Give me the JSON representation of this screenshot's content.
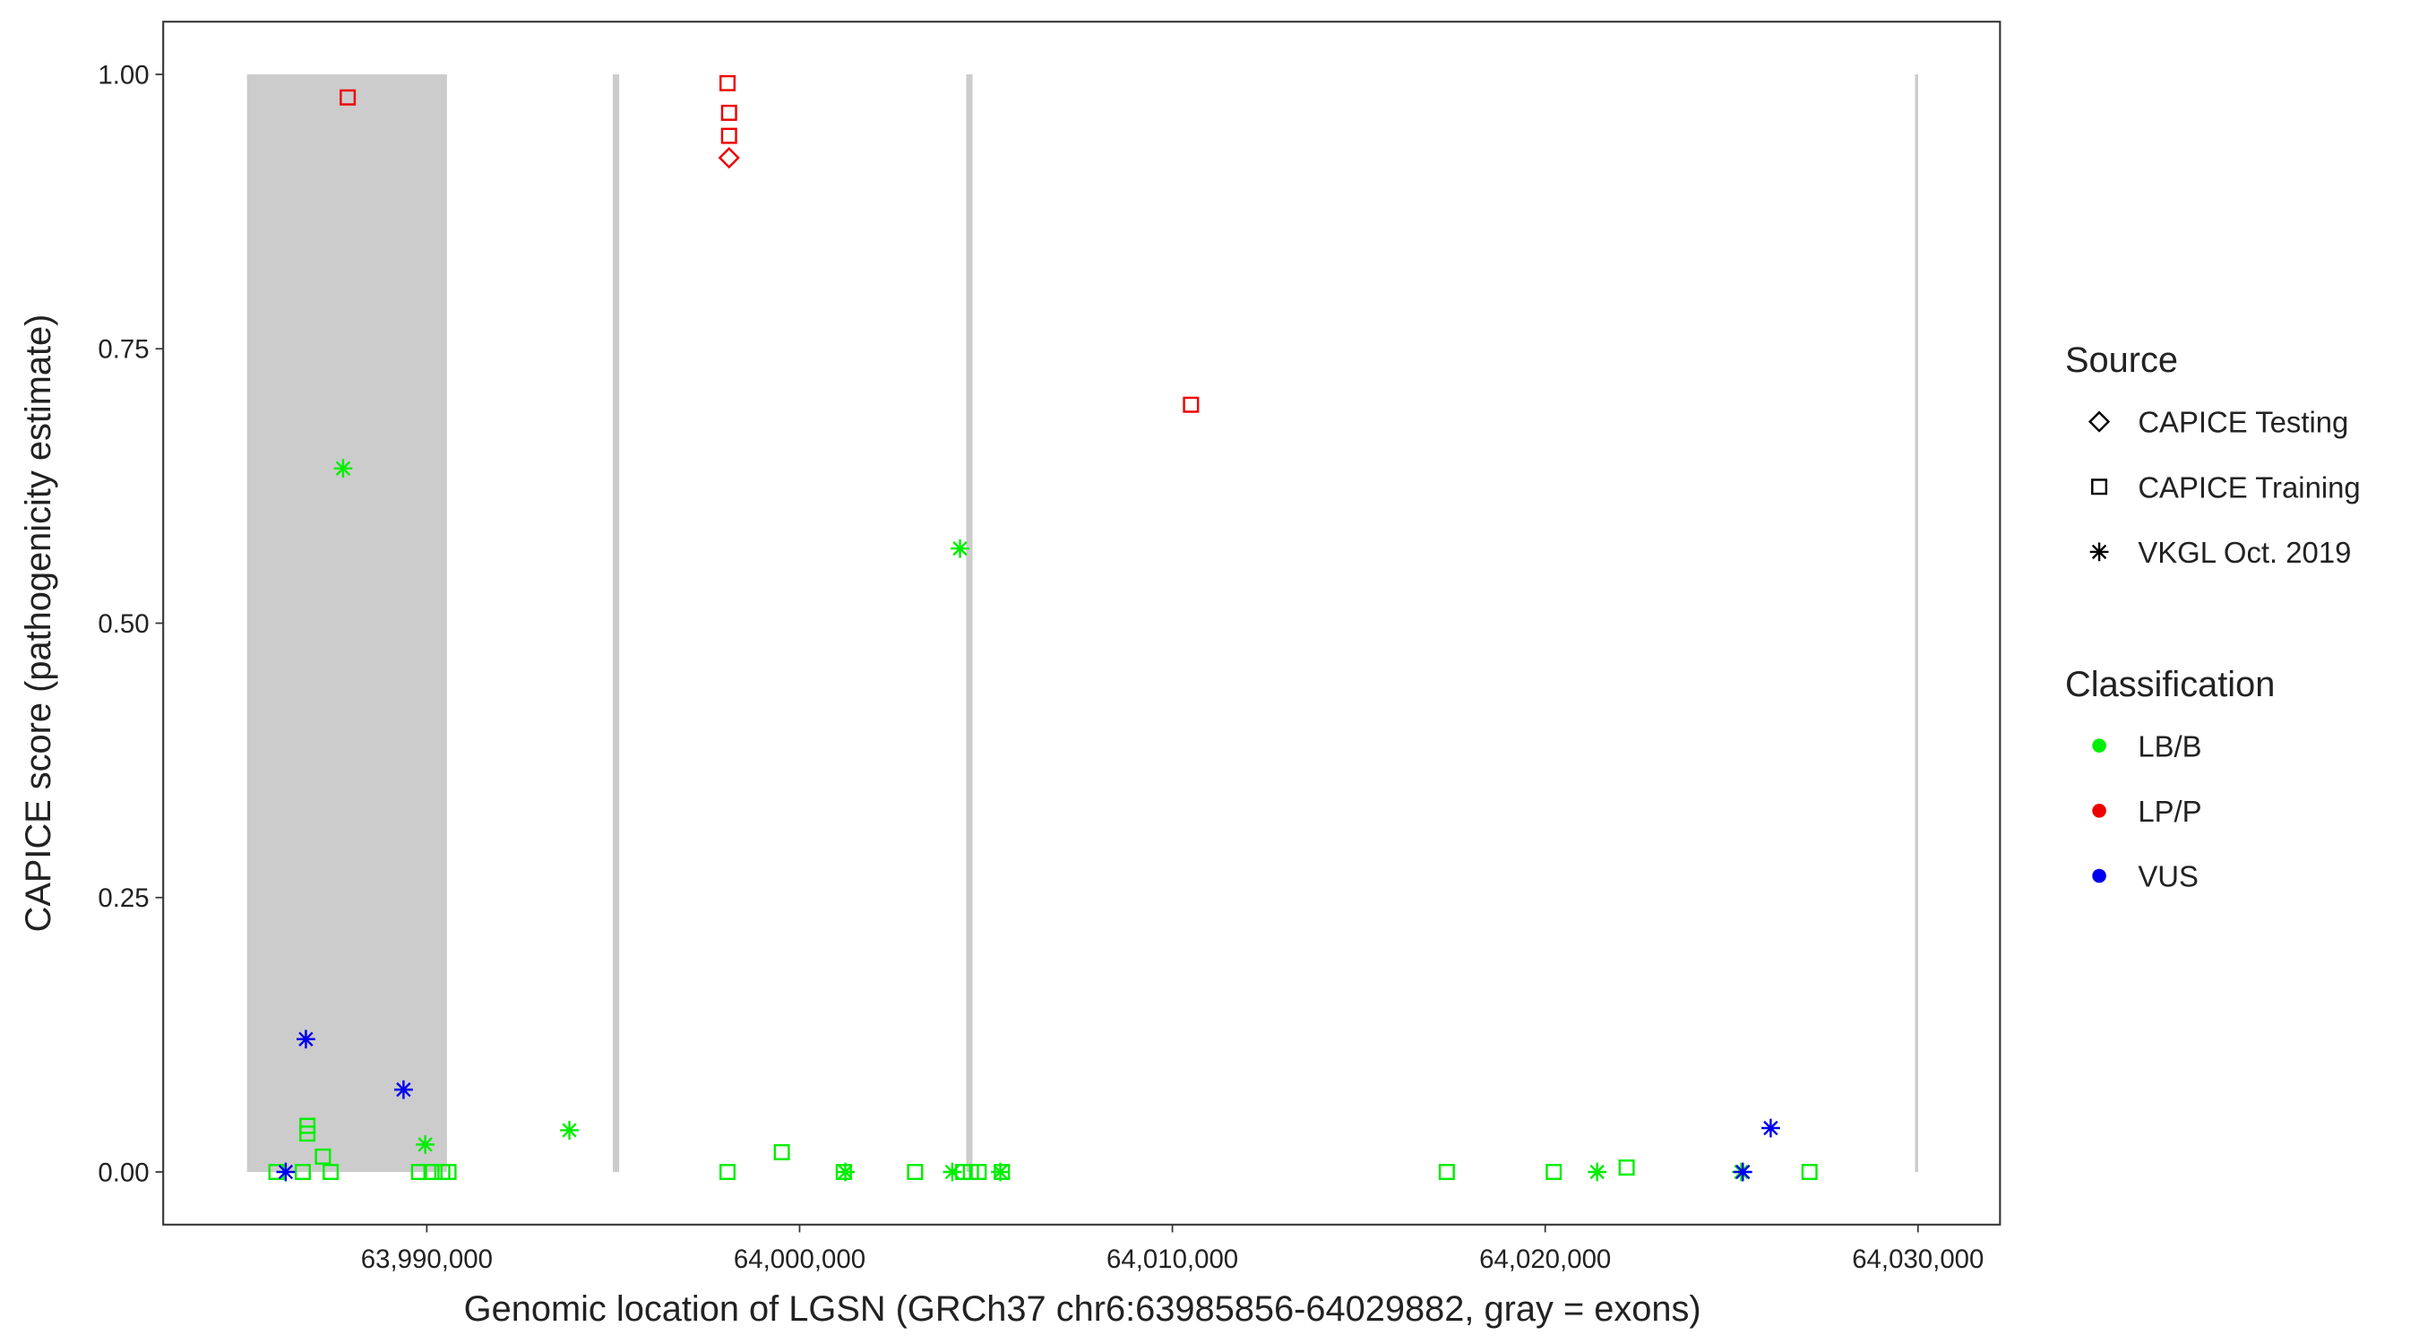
{
  "chart_data": {
    "type": "scatter",
    "x_label": "Genomic location of LGSN (GRCh37 chr6:63985856-64029882, gray = exons)",
    "y_label": "CAPICE score (pathogenicity estimate)",
    "xlim": [
      63982930,
      64032200
    ],
    "ylim": [
      -0.048,
      1.048
    ],
    "xticks": [
      {
        "value": 63990000,
        "label": "63,990,000"
      },
      {
        "value": 64000000,
        "label": "64,000,000"
      },
      {
        "value": 64010000,
        "label": "64,010,000"
      },
      {
        "value": 64020000,
        "label": "64,020,000"
      },
      {
        "value": 64030000,
        "label": "64,030,000"
      }
    ],
    "yticks": [
      {
        "value": 0,
        "label": "0.00"
      },
      {
        "value": 0.25,
        "label": "0.25"
      },
      {
        "value": 0.5,
        "label": "0.50"
      },
      {
        "value": 0.75,
        "label": "0.75"
      },
      {
        "value": 1,
        "label": "1.00"
      }
    ],
    "exons": [
      {
        "start": 63985177,
        "end": 63990541
      },
      {
        "start": 63994990,
        "end": 63995160
      },
      {
        "start": 64004470,
        "end": 64004640
      },
      {
        "start": 64029920,
        "end": 64029990
      }
    ],
    "exon_color": "#cccccc",
    "source_title": "Source",
    "sources": [
      {
        "name": "CAPICE Testing",
        "shape": "diamond"
      },
      {
        "name": "CAPICE Training",
        "shape": "square"
      },
      {
        "name": "VKGL Oct. 2019",
        "shape": "asterisk"
      }
    ],
    "legend_title": "Classification",
    "series": [
      {
        "name": "LB/B",
        "color": "#00ee00",
        "x": [
          63987755,
          64004303,
          63989958,
          63993825,
          64001227,
          64004096,
          64005385,
          64021393,
          64025260,
          63986798,
          63986798,
          63987214,
          63985967,
          63986674,
          63987422,
          63989792,
          63990125,
          63990416,
          63990582,
          63998067,
          63999522,
          64001185,
          64003098,
          64004387,
          64004595,
          64004803,
          64005427,
          64017360,
          64020229,
          64022184,
          64027090
        ],
        "y": [
          0.641,
          0.568,
          0.025,
          0.038,
          0,
          0,
          0,
          0,
          0,
          0.042,
          0.035,
          0.014,
          0,
          0,
          0,
          0,
          0,
          0,
          0,
          0,
          0.018,
          0,
          0,
          0,
          0,
          0,
          0,
          0,
          0,
          0.004,
          0
        ],
        "source": [
          "VKGL Oct. 2019",
          "VKGL Oct. 2019",
          "VKGL Oct. 2019",
          "VKGL Oct. 2019",
          "VKGL Oct. 2019",
          "VKGL Oct. 2019",
          "VKGL Oct. 2019",
          "VKGL Oct. 2019",
          "VKGL Oct. 2019",
          "CAPICE Training",
          "CAPICE Training",
          "CAPICE Training",
          "CAPICE Training",
          "CAPICE Training",
          "CAPICE Training",
          "CAPICE Training",
          "CAPICE Training",
          "CAPICE Training",
          "CAPICE Training",
          "CAPICE Training",
          "CAPICE Training",
          "CAPICE Training",
          "CAPICE Training",
          "CAPICE Training",
          "CAPICE Training",
          "CAPICE Training",
          "CAPICE Training",
          "CAPICE Training",
          "CAPICE Training",
          "CAPICE Training",
          "CAPICE Training"
        ]
      },
      {
        "name": "LP/P",
        "color": "#ee0000",
        "x": [
          63987879,
          63998067,
          63998108,
          63998108,
          63998108,
          64010499
        ],
        "y": [
          0.979,
          0.992,
          0.965,
          0.944,
          0.924,
          0.699
        ],
        "source": [
          "CAPICE Training",
          "CAPICE Training",
          "CAPICE Training",
          "CAPICE Training",
          "CAPICE Testing",
          "CAPICE Training"
        ]
      },
      {
        "name": "VUS",
        "color": "#0000ee",
        "x": [
          63986216,
          63986757,
          63989376,
          64025301,
          64026049
        ],
        "y": [
          0,
          0.121,
          0.075,
          0,
          0.04
        ],
        "source": [
          "VKGL Oct. 2019",
          "VKGL Oct. 2019",
          "VKGL Oct. 2019",
          "VKGL Oct. 2019",
          "VKGL Oct. 2019"
        ]
      }
    ]
  }
}
